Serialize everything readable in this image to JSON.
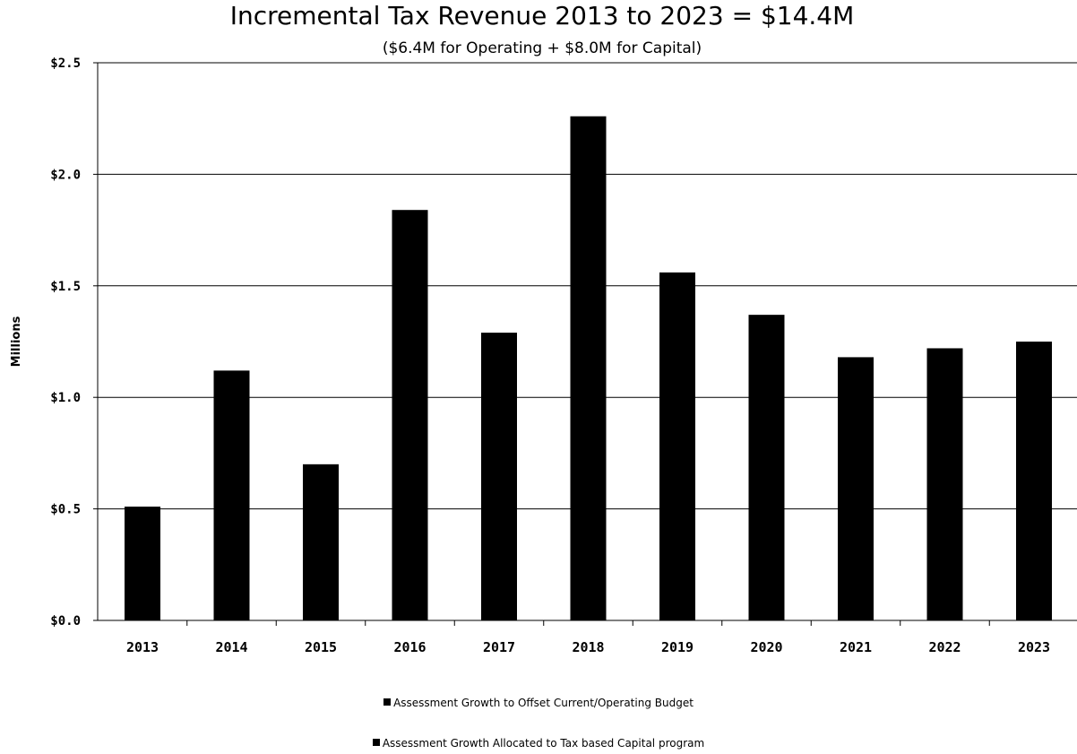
{
  "chart_data": {
    "type": "bar",
    "title": "Incremental Tax Revenue 2013 to 2023 = $14.4M",
    "subtitle": "($6.4M for Operating  +  $8.0M for Capital)",
    "ylabel": "Millions",
    "xlabel": "",
    "categories": [
      "2013",
      "2014",
      "2015",
      "2016",
      "2017",
      "2018",
      "2019",
      "2020",
      "2021",
      "2022",
      "2023"
    ],
    "values": [
      0.51,
      1.12,
      0.7,
      1.84,
      1.29,
      2.26,
      1.56,
      1.37,
      1.18,
      1.22,
      1.25
    ],
    "ylim": [
      0,
      2.5
    ],
    "yticks": [
      0,
      0.5,
      1.0,
      1.5,
      2.0,
      2.5
    ],
    "ytick_labels": [
      "$0.0",
      "$0.5",
      "$1.0",
      "$1.5",
      "$2.0",
      "$2.5"
    ],
    "grid": true,
    "bar_color": "#000000",
    "legend_position": "bottom",
    "legend": [
      "Assessment Growth to Offset Current/Operating Budget",
      "Assessment Growth Allocated to Tax based Capital program"
    ]
  }
}
